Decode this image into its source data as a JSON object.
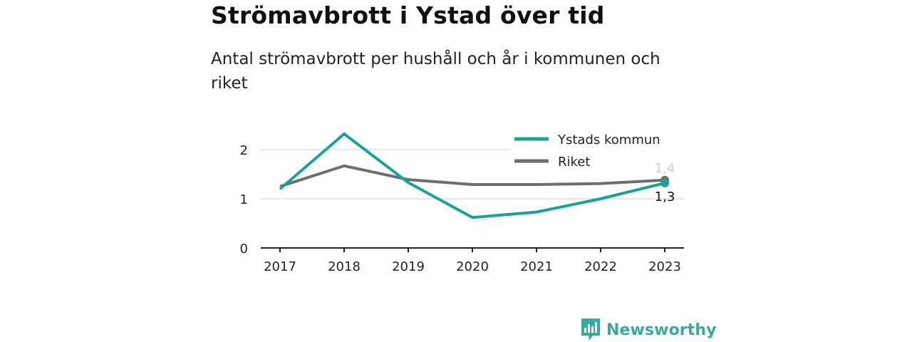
{
  "title": "Strömavbrott i Ystad över tid",
  "subtitle": "Antal strömavbrott per hushåll och år i kommunen och riket",
  "brand": "Newsworthy",
  "colors": {
    "ystad": "#1aa394",
    "riket": "#6e6e70",
    "grid": "#dedede",
    "axis": "#222222"
  },
  "chart_data": {
    "type": "line",
    "x": [
      "2017",
      "2018",
      "2019",
      "2020",
      "2021",
      "2022",
      "2023"
    ],
    "ylim": [
      0,
      2.5
    ],
    "yticks": [
      "0",
      "1",
      "2"
    ],
    "grid": "horizontal",
    "legend": "top-right",
    "series": [
      {
        "name": "Ystads kommun",
        "color": "#1aa394",
        "values": [
          1.2,
          2.32,
          1.33,
          0.62,
          0.73,
          1.0,
          1.32
        ]
      },
      {
        "name": "Riket",
        "color": "#6e6e70",
        "values": [
          1.25,
          1.67,
          1.39,
          1.29,
          1.29,
          1.31,
          1.38
        ]
      }
    ],
    "end_labels": [
      "1,3",
      "1,4"
    ]
  }
}
